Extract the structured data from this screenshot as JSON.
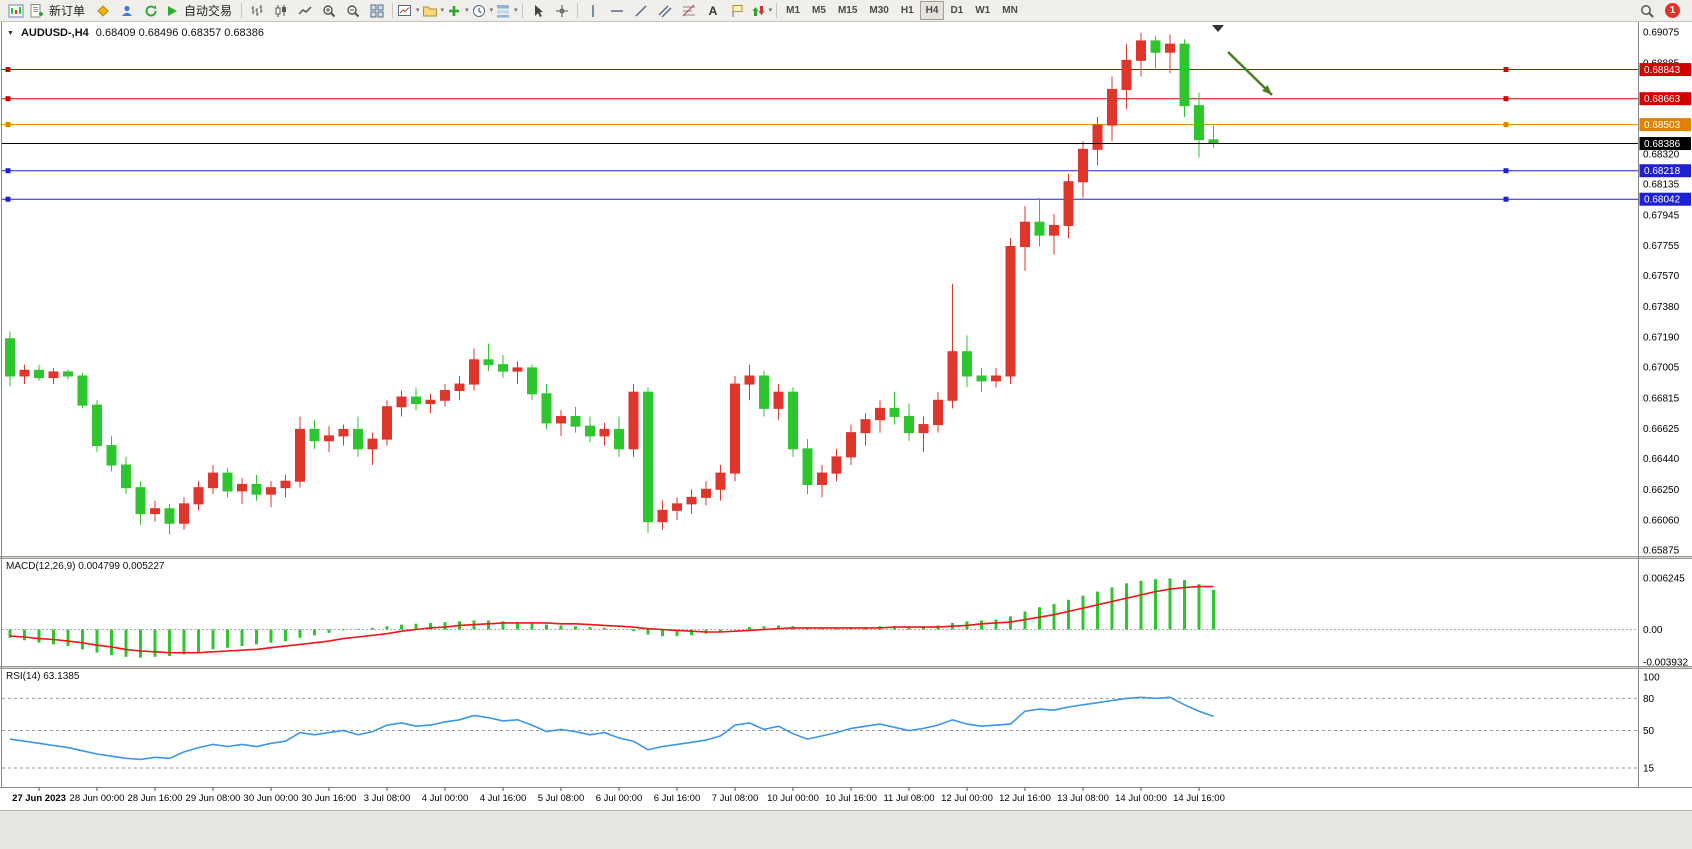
{
  "toolbar": {
    "new_order_label": "新订单",
    "auto_trading_label": "自动交易",
    "timeframes": [
      "M1",
      "M5",
      "M15",
      "M30",
      "H1",
      "H4",
      "D1",
      "W1",
      "MN"
    ],
    "active_timeframe": "H4",
    "notification_count": "1",
    "icons": [
      "chart-window",
      "new-order",
      "metaeditor",
      "community",
      "refresh",
      "auto-trading",
      "bars",
      "candlesticks",
      "line-chart",
      "zoom-in",
      "zoom-out",
      "tile-windows",
      "new-chart",
      "profiles",
      "indicators",
      "periods",
      "templates",
      "cursor",
      "crosshair",
      "vertical-line",
      "horizontal-line",
      "trendline",
      "channel",
      "fibonacci",
      "text",
      "text-label",
      "shapes",
      "search",
      "notification"
    ]
  },
  "chart": {
    "symbol_title": "AUDUSD-,H4",
    "ohlc_text": "0.68409 0.68496 0.68357 0.68386"
  },
  "chart_data": {
    "type": "candlestick",
    "symbol": "AUDUSD-",
    "timeframe": "H4",
    "ylim": [
      0.65875,
      0.69075
    ],
    "colors": {
      "up": "#e0352b",
      "down": "#2fc52f"
    },
    "ohlc": [
      [
        0.6718,
        0.67225,
        0.66885,
        0.6695
      ],
      [
        0.6695,
        0.6702,
        0.669,
        0.66985
      ],
      [
        0.66985,
        0.6702,
        0.6692,
        0.6694
      ],
      [
        0.6694,
        0.67,
        0.669,
        0.66975
      ],
      [
        0.66975,
        0.6699,
        0.6693,
        0.6695
      ],
      [
        0.6695,
        0.6697,
        0.6675,
        0.6677
      ],
      [
        0.6677,
        0.668,
        0.6648,
        0.6652
      ],
      [
        0.6652,
        0.6658,
        0.6636,
        0.664
      ],
      [
        0.664,
        0.6645,
        0.6622,
        0.6626
      ],
      [
        0.6626,
        0.663,
        0.6603,
        0.661
      ],
      [
        0.661,
        0.6618,
        0.6605,
        0.6613
      ],
      [
        0.6613,
        0.6616,
        0.6597,
        0.6604
      ],
      [
        0.6604,
        0.662,
        0.66,
        0.6616
      ],
      [
        0.6616,
        0.663,
        0.6612,
        0.6626
      ],
      [
        0.6626,
        0.664,
        0.6622,
        0.6635
      ],
      [
        0.6635,
        0.6638,
        0.662,
        0.6624
      ],
      [
        0.6624,
        0.6632,
        0.6616,
        0.6628
      ],
      [
        0.6628,
        0.6634,
        0.6618,
        0.6622
      ],
      [
        0.6622,
        0.663,
        0.6614,
        0.6626
      ],
      [
        0.6626,
        0.6634,
        0.662,
        0.663
      ],
      [
        0.663,
        0.667,
        0.6626,
        0.6662
      ],
      [
        0.6662,
        0.6668,
        0.665,
        0.6655
      ],
      [
        0.6655,
        0.6664,
        0.6648,
        0.6658
      ],
      [
        0.6658,
        0.6665,
        0.6652,
        0.6662
      ],
      [
        0.6662,
        0.667,
        0.6645,
        0.665
      ],
      [
        0.665,
        0.666,
        0.664,
        0.6656
      ],
      [
        0.6656,
        0.668,
        0.6652,
        0.6676
      ],
      [
        0.6676,
        0.6686,
        0.667,
        0.6682
      ],
      [
        0.6682,
        0.6688,
        0.6674,
        0.6678
      ],
      [
        0.6678,
        0.6684,
        0.6672,
        0.668
      ],
      [
        0.668,
        0.669,
        0.6676,
        0.6686
      ],
      [
        0.6686,
        0.6695,
        0.668,
        0.669
      ],
      [
        0.669,
        0.6712,
        0.6686,
        0.6705
      ],
      [
        0.6705,
        0.6715,
        0.6698,
        0.6702
      ],
      [
        0.6702,
        0.6708,
        0.6694,
        0.6698
      ],
      [
        0.6698,
        0.6704,
        0.669,
        0.67
      ],
      [
        0.67,
        0.6702,
        0.668,
        0.6684
      ],
      [
        0.6684,
        0.669,
        0.6662,
        0.6666
      ],
      [
        0.6666,
        0.6674,
        0.6658,
        0.667
      ],
      [
        0.667,
        0.6676,
        0.666,
        0.6664
      ],
      [
        0.6664,
        0.667,
        0.6654,
        0.6658
      ],
      [
        0.6658,
        0.6666,
        0.6652,
        0.6662
      ],
      [
        0.6662,
        0.667,
        0.6645,
        0.665
      ],
      [
        0.665,
        0.669,
        0.6645,
        0.6685
      ],
      [
        0.6685,
        0.6688,
        0.6598,
        0.6605
      ],
      [
        0.6605,
        0.6618,
        0.66,
        0.6612
      ],
      [
        0.6612,
        0.662,
        0.6606,
        0.6616
      ],
      [
        0.6616,
        0.6625,
        0.661,
        0.662
      ],
      [
        0.662,
        0.663,
        0.6615,
        0.6625
      ],
      [
        0.6625,
        0.664,
        0.6618,
        0.6635
      ],
      [
        0.6635,
        0.6695,
        0.663,
        0.669
      ],
      [
        0.669,
        0.6702,
        0.668,
        0.6695
      ],
      [
        0.6695,
        0.6698,
        0.667,
        0.6675
      ],
      [
        0.6675,
        0.669,
        0.6668,
        0.6685
      ],
      [
        0.6685,
        0.6688,
        0.6645,
        0.665
      ],
      [
        0.665,
        0.6656,
        0.6622,
        0.6628
      ],
      [
        0.6628,
        0.664,
        0.662,
        0.6635
      ],
      [
        0.6635,
        0.665,
        0.663,
        0.6645
      ],
      [
        0.6645,
        0.6665,
        0.664,
        0.666
      ],
      [
        0.666,
        0.6672,
        0.6652,
        0.6668
      ],
      [
        0.6668,
        0.668,
        0.666,
        0.6675
      ],
      [
        0.6675,
        0.6685,
        0.6665,
        0.667
      ],
      [
        0.667,
        0.6678,
        0.6655,
        0.666
      ],
      [
        0.666,
        0.667,
        0.6648,
        0.6665
      ],
      [
        0.6665,
        0.6685,
        0.666,
        0.668
      ],
      [
        0.668,
        0.6752,
        0.6675,
        0.671
      ],
      [
        0.671,
        0.672,
        0.6688,
        0.6695
      ],
      [
        0.6695,
        0.67,
        0.6685,
        0.6692
      ],
      [
        0.6692,
        0.67,
        0.6688,
        0.6695
      ],
      [
        0.6695,
        0.678,
        0.669,
        0.6775
      ],
      [
        0.6775,
        0.68,
        0.676,
        0.679
      ],
      [
        0.679,
        0.6805,
        0.6775,
        0.6782
      ],
      [
        0.6782,
        0.6795,
        0.677,
        0.6788
      ],
      [
        0.6788,
        0.682,
        0.678,
        0.6815
      ],
      [
        0.6815,
        0.684,
        0.6805,
        0.6835
      ],
      [
        0.6835,
        0.6855,
        0.6825,
        0.685
      ],
      [
        0.685,
        0.688,
        0.684,
        0.6872
      ],
      [
        0.6872,
        0.69,
        0.686,
        0.689
      ],
      [
        0.689,
        0.6907,
        0.688,
        0.6902
      ],
      [
        0.6902,
        0.6905,
        0.6885,
        0.6895
      ],
      [
        0.6895,
        0.6906,
        0.6882,
        0.69
      ],
      [
        0.69,
        0.6903,
        0.6855,
        0.6862
      ],
      [
        0.6862,
        0.687,
        0.683,
        0.6841
      ],
      [
        0.68409,
        0.68496,
        0.68357,
        0.68386
      ]
    ],
    "time_labels": [
      "27 Jun 2023",
      "28 Jun 00:00",
      "28 Jun 16:00",
      "29 Jun 08:00",
      "30 Jun 00:00",
      "30 Jun 16:00",
      "3 Jul 08:00",
      "4 Jul 00:00",
      "4 Jul 16:00",
      "5 Jul 08:00",
      "6 Jul 00:00",
      "6 Jul 16:00",
      "7 Jul 08:00",
      "10 Jul 00:00",
      "10 Jul 16:00",
      "11 Jul 08:00",
      "12 Jul 00:00",
      "12 Jul 16:00",
      "13 Jul 08:00",
      "14 Jul 00:00",
      "14 Jul 16:00"
    ],
    "first_label_index": 2,
    "time_label_step": 4,
    "price_axis_labels": [
      "0.69075",
      "0.68885",
      "0.68320",
      "0.68135",
      "0.67945",
      "0.67755",
      "0.67570",
      "0.67380",
      "0.67190",
      "0.67005",
      "0.66815",
      "0.66625",
      "0.66440",
      "0.66250",
      "0.66060",
      "0.65875"
    ],
    "hlines": [
      {
        "price": 0.68843,
        "label": "0.68843",
        "color": "#d40000",
        "kind": "resistance-line"
      },
      {
        "price": 0.68663,
        "label": "0.68663",
        "color": "#d40000",
        "kind": "resistance-line"
      },
      {
        "price": 0.68503,
        "label": "0.68503",
        "color": "#e08200",
        "kind": "level-line"
      },
      {
        "price": 0.68386,
        "label": "0.68386",
        "color": "#000000",
        "kind": "current-price",
        "current": true
      },
      {
        "price": 0.68218,
        "label": "0.68218",
        "color": "#1f1fd4",
        "kind": "support-line"
      },
      {
        "price": 0.68042,
        "label": "0.68042",
        "color": "#1f1fd4",
        "kind": "support-line"
      }
    ],
    "annotation_arrow": {
      "from": [
        1228,
        30
      ],
      "to": [
        1272,
        73
      ],
      "color": "#4e7d1f"
    }
  },
  "macd": {
    "label": "MACD(12,26,9) 0.004799 0.005227",
    "axis_labels": [
      "0.006245",
      "0.00",
      "-0.003932"
    ],
    "range": [
      -0.003932,
      0.006245
    ],
    "colors": {
      "histogram": "#2fc52f",
      "signal": "#f21616"
    },
    "histogram": [
      -0.001,
      -0.0013,
      -0.0016,
      -0.0018,
      -0.002,
      -0.0024,
      -0.0028,
      -0.0031,
      -0.0033,
      -0.0034,
      -0.0033,
      -0.0032,
      -0.003,
      -0.0027,
      -0.0024,
      -0.0022,
      -0.002,
      -0.0018,
      -0.0016,
      -0.0014,
      -0.001,
      -0.0007,
      -0.0004,
      -0.0001,
      0.0001,
      0.0002,
      0.0004,
      0.0006,
      0.0007,
      0.0008,
      0.0009,
      0.001,
      0.0011,
      0.0011,
      0.001,
      0.0009,
      0.0008,
      0.0006,
      0.0005,
      0.0004,
      0.0003,
      0.0002,
      0.0,
      -0.0002,
      -0.0006,
      -0.0008,
      -0.0008,
      -0.0007,
      -0.0005,
      -0.0003,
      0.0,
      0.0003,
      0.0004,
      0.0005,
      0.0004,
      0.0002,
      0.0001,
      0.0001,
      0.0002,
      0.0003,
      0.0004,
      0.0004,
      0.0004,
      0.0004,
      0.0005,
      0.0008,
      0.001,
      0.0011,
      0.0012,
      0.0016,
      0.0022,
      0.0027,
      0.0031,
      0.0036,
      0.0041,
      0.0046,
      0.0051,
      0.0056,
      0.0059,
      0.0061,
      0.0062,
      0.006,
      0.0055,
      0.0048
    ],
    "signal": [
      -0.0008,
      -0.0009,
      -0.0011,
      -0.0012,
      -0.0014,
      -0.0016,
      -0.0019,
      -0.0021,
      -0.0024,
      -0.0026,
      -0.0027,
      -0.0028,
      -0.0028,
      -0.0028,
      -0.0027,
      -0.0026,
      -0.0025,
      -0.0024,
      -0.0022,
      -0.002,
      -0.0018,
      -0.0016,
      -0.0014,
      -0.0011,
      -0.0009,
      -0.0007,
      -0.0005,
      -0.0002,
      0.0,
      0.0002,
      0.0003,
      0.0005,
      0.0006,
      0.0007,
      0.0008,
      0.0008,
      0.0008,
      0.0008,
      0.0007,
      0.0007,
      0.0006,
      0.0005,
      0.0004,
      0.0003,
      0.0001,
      0.0,
      -0.0001,
      -0.0002,
      -0.0003,
      -0.0003,
      -0.0002,
      -0.0001,
      0.0,
      0.0001,
      0.0002,
      0.0002,
      0.0002,
      0.0002,
      0.0002,
      0.0002,
      0.0002,
      0.0003,
      0.0003,
      0.0003,
      0.0003,
      0.0004,
      0.0005,
      0.0007,
      0.0008,
      0.0009,
      0.0012,
      0.0015,
      0.0018,
      0.0022,
      0.0026,
      0.003,
      0.0034,
      0.0038,
      0.0042,
      0.0046,
      0.0049,
      0.0051,
      0.0052,
      0.0052
    ]
  },
  "rsi": {
    "label": "RSI(14) 63.1385",
    "axis_labels": [
      "100",
      "80",
      "50",
      "15"
    ],
    "levels": [
      80,
      50,
      15
    ],
    "range": [
      0,
      100
    ],
    "color": "#3c96e8",
    "values": [
      42,
      40,
      38,
      36,
      34,
      31,
      28,
      26,
      24,
      23,
      25,
      24,
      30,
      34,
      37,
      35,
      37,
      35,
      38,
      40,
      48,
      46,
      48,
      50,
      46,
      49,
      55,
      57,
      54,
      55,
      58,
      60,
      64,
      62,
      59,
      60,
      55,
      49,
      51,
      49,
      46,
      48,
      43,
      40,
      32,
      35,
      37,
      39,
      41,
      45,
      55,
      57,
      51,
      54,
      47,
      42,
      45,
      48,
      52,
      54,
      56,
      53,
      50,
      52,
      55,
      60,
      56,
      54,
      55,
      56,
      68,
      70,
      69,
      72,
      74,
      76,
      78,
      80,
      81,
      80,
      81,
      74,
      68,
      63.14
    ]
  }
}
